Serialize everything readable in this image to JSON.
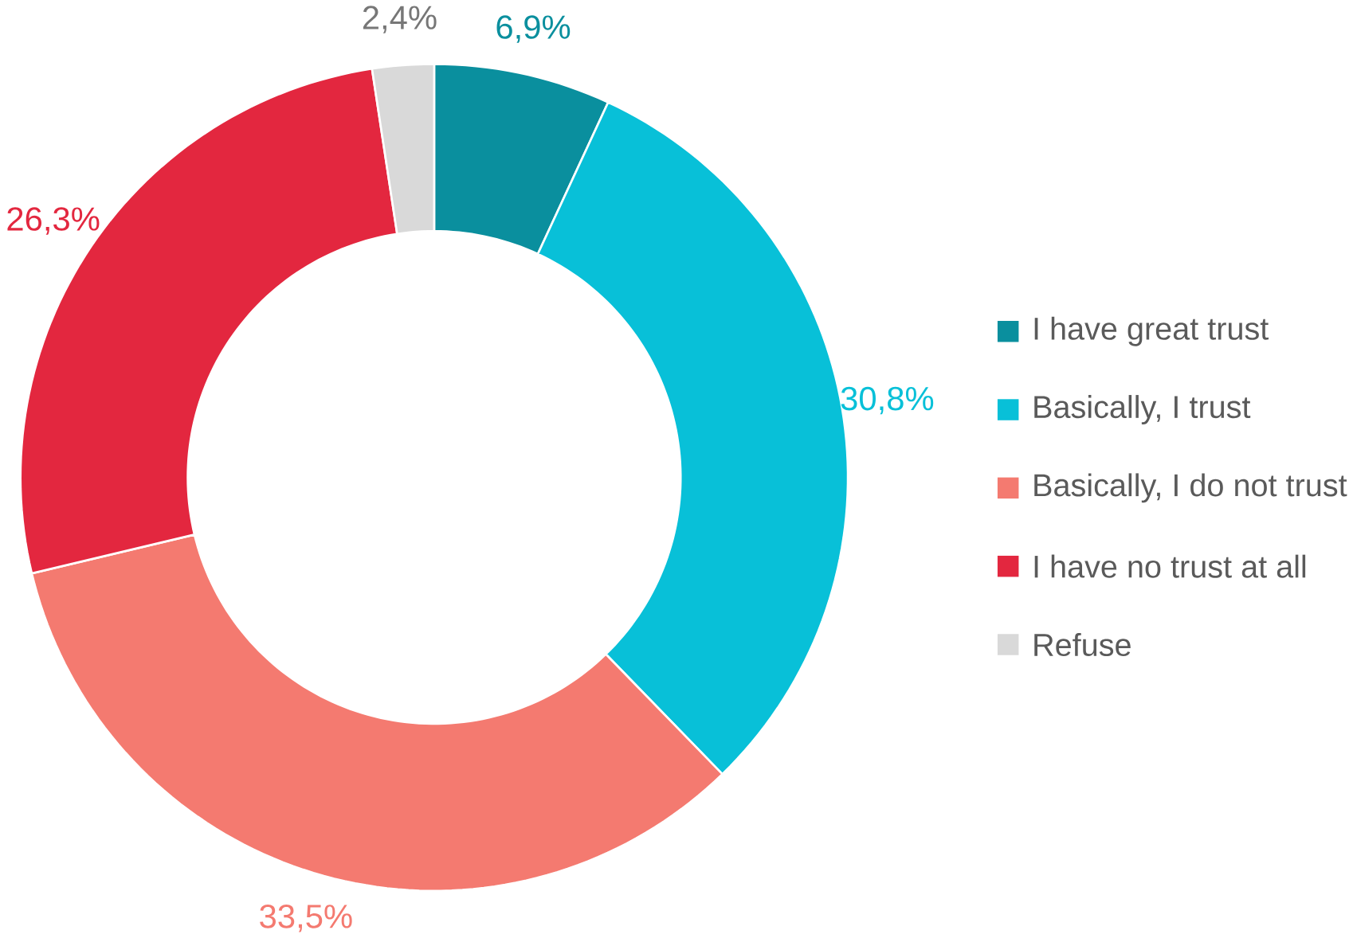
{
  "chart_data": {
    "type": "donut",
    "categories": [
      "I have great trust",
      "Basically, I trust",
      "Basically, I do not trust",
      "I have no trust at all",
      "Refuse"
    ],
    "values": [
      6.9,
      30.8,
      33.5,
      26.3,
      2.4
    ],
    "value_labels": [
      "6,9%",
      "30,8%",
      "33,5%",
      "26,3%",
      "2,4%"
    ],
    "colors": [
      "#0a8f9e",
      "#08c0d8",
      "#f47a70",
      "#e3273f",
      "#d9d9d9"
    ],
    "legend": "right"
  }
}
